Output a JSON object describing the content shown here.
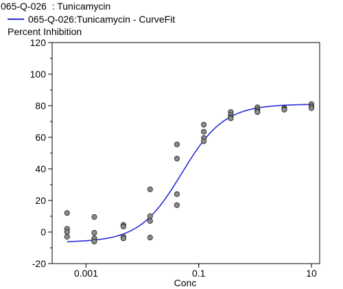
{
  "chart_data": {
    "type": "scatter",
    "title": "065-Q-026  : Tunicamycin",
    "legend": "065-Q-026:Tunicamycin - CurveFit",
    "ylabel": "Percent Inhibition",
    "xlabel": "Conc",
    "xscale": "log",
    "xlim": [
      0.00025,
      14
    ],
    "ylim": [
      -20,
      120
    ],
    "yticks": [
      -20,
      0,
      20,
      40,
      60,
      80,
      100,
      120
    ],
    "xticks": [
      0.001,
      0.1,
      10
    ],
    "xtick_labels": [
      "0.001",
      "0.1",
      "10"
    ],
    "grid": false,
    "legend_placement": "top-left",
    "colors": {
      "curve": "#2a2ad8",
      "marker_fill": "#8c8c8c",
      "marker_edge": "#333333",
      "axis": "#000000"
    },
    "points": [
      {
        "x": 0.00046,
        "y": 12
      },
      {
        "x": 0.00046,
        "y": 2
      },
      {
        "x": 0.00046,
        "y": 0
      },
      {
        "x": 0.00046,
        "y": -3
      },
      {
        "x": 0.0014,
        "y": 9.5
      },
      {
        "x": 0.0014,
        "y": -0.5
      },
      {
        "x": 0.0014,
        "y": -4
      },
      {
        "x": 0.0014,
        "y": -6
      },
      {
        "x": 0.0046,
        "y": 4.5
      },
      {
        "x": 0.0046,
        "y": 3.5
      },
      {
        "x": 0.0046,
        "y": -3
      },
      {
        "x": 0.0046,
        "y": -4
      },
      {
        "x": 0.0137,
        "y": 27
      },
      {
        "x": 0.0137,
        "y": 10
      },
      {
        "x": 0.0137,
        "y": 7
      },
      {
        "x": 0.0137,
        "y": -3.5
      },
      {
        "x": 0.041,
        "y": 55.5
      },
      {
        "x": 0.041,
        "y": 46.5
      },
      {
        "x": 0.041,
        "y": 24
      },
      {
        "x": 0.041,
        "y": 17
      },
      {
        "x": 0.123,
        "y": 68
      },
      {
        "x": 0.123,
        "y": 63.5
      },
      {
        "x": 0.123,
        "y": 59.5
      },
      {
        "x": 0.123,
        "y": 57.5
      },
      {
        "x": 0.37,
        "y": 76
      },
      {
        "x": 0.37,
        "y": 74
      },
      {
        "x": 0.37,
        "y": 72.5
      },
      {
        "x": 0.37,
        "y": 72
      },
      {
        "x": 1.1,
        "y": 79
      },
      {
        "x": 1.1,
        "y": 77.5
      },
      {
        "x": 1.1,
        "y": 76.5
      },
      {
        "x": 1.1,
        "y": 76
      },
      {
        "x": 3.3,
        "y": 78.5
      },
      {
        "x": 3.3,
        "y": 78
      },
      {
        "x": 3.3,
        "y": 77.5
      },
      {
        "x": 10,
        "y": 81
      },
      {
        "x": 10,
        "y": 79.5
      },
      {
        "x": 10,
        "y": 78.5
      }
    ],
    "curve_fit": {
      "model": "4PL",
      "bottom": -6.5,
      "top": 81,
      "ec50": 0.05,
      "hill": 1.15,
      "x_range": [
        0.00046,
        10
      ]
    }
  }
}
